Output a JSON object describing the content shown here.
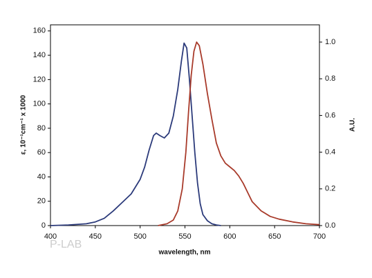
{
  "chart_data": {
    "type": "line",
    "xlabel": "wavelength, nm",
    "ylabel": "ε, 10⁻¹cm⁻¹ x 1000",
    "y2label": "A.U.",
    "watermark": "P-LAB",
    "xlim": [
      400,
      700
    ],
    "xticks": [
      400,
      450,
      500,
      550,
      600,
      650,
      700
    ],
    "ylim": [
      0,
      165
    ],
    "yticks": [
      0,
      20,
      40,
      60,
      80,
      100,
      120,
      140,
      160
    ],
    "y2lim": [
      0,
      1.094
    ],
    "y2ticks": [
      {
        "value": 0,
        "label": "0.0"
      },
      0.2,
      0.4,
      0.6,
      0.8,
      {
        "value": 1,
        "label": "1.0"
      }
    ],
    "series": [
      {
        "color": "#2b3a7a",
        "axis": "y",
        "x": [
          400,
          420,
          440,
          450,
          460,
          470,
          480,
          490,
          500,
          505,
          510,
          515,
          518,
          522,
          527,
          532,
          537,
          542,
          546,
          549,
          552,
          555,
          558,
          561,
          564,
          567,
          570,
          575,
          580,
          585,
          590
        ],
        "values": [
          0,
          0.5,
          1.5,
          3,
          6,
          12,
          19,
          26,
          38,
          48,
          62,
          74,
          76,
          74,
          72,
          76,
          90,
          112,
          135,
          150,
          146,
          120,
          90,
          60,
          35,
          18,
          9,
          4,
          1.5,
          0.5,
          0
        ]
      },
      {
        "color": "#a83a2a",
        "axis": "y2",
        "x": [
          520,
          530,
          537,
          542,
          547,
          551,
          554,
          557,
          560,
          563,
          566,
          570,
          575,
          580,
          585,
          590,
          595,
          600,
          605,
          610,
          615,
          620,
          625,
          635,
          645,
          655,
          670,
          685,
          700
        ],
        "values": [
          0,
          0.01,
          0.03,
          0.08,
          0.2,
          0.4,
          0.62,
          0.82,
          0.95,
          1.0,
          0.98,
          0.88,
          0.72,
          0.58,
          0.45,
          0.38,
          0.34,
          0.32,
          0.3,
          0.27,
          0.23,
          0.18,
          0.13,
          0.08,
          0.05,
          0.035,
          0.02,
          0.01,
          0.005
        ]
      }
    ]
  }
}
